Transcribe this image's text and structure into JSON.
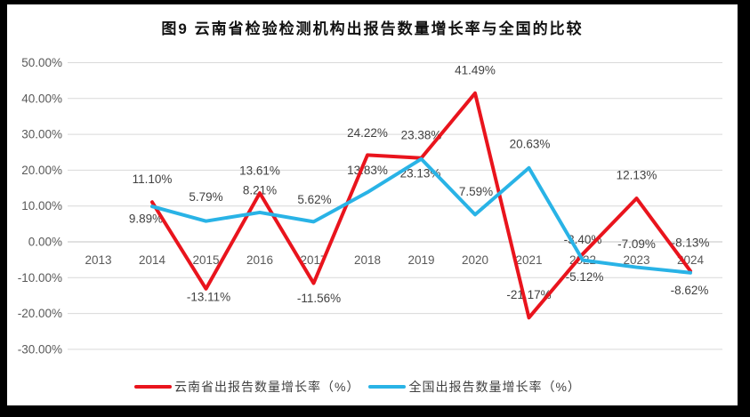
{
  "page": {
    "frame_color": "#000000",
    "canvas_color": "#ffffff"
  },
  "chart_data": {
    "type": "line",
    "title": "图9 云南省检验检测机构出报告数量增长率与全国的比较",
    "x_categories": [
      "2013",
      "2014",
      "2015",
      "2016",
      "2017",
      "2018",
      "2019",
      "2020",
      "2021",
      "2022",
      "2023",
      "2024"
    ],
    "y_axis": {
      "min": -30,
      "max": 50,
      "step": 10,
      "tick_labels": [
        "50.00%",
        "40.00%",
        "30.00%",
        "20.00%",
        "10.00%",
        "0.00%",
        "-10.00%",
        "-20.00%",
        "-30.00%"
      ]
    },
    "grid": "horizontal",
    "legend_position": "bottom",
    "series": [
      {
        "name": "云南省出报告数量增长率（%）",
        "color": "#e9141d",
        "start_category": "2014",
        "values": [
          11.1,
          -13.11,
          13.61,
          -11.56,
          24.22,
          23.38,
          41.49,
          -21.17,
          -3.4,
          12.13,
          -8.13
        ],
        "point_labels": [
          "11.10%",
          "-13.11%",
          "13.61%",
          "-11.56%",
          "24.22%",
          "23.38%",
          "41.49%",
          "-21.17%",
          "-3.40%",
          "12.13%",
          "-8.13%"
        ]
      },
      {
        "name": "全国出报告数量增长率（%）",
        "color": "#29b3e6",
        "start_category": "2014",
        "values": [
          9.89,
          5.79,
          8.21,
          5.62,
          13.83,
          23.13,
          7.59,
          20.63,
          -5.12,
          -7.09,
          -8.62
        ],
        "point_labels": [
          "9.89%",
          "5.79%",
          "8.21%",
          "5.62%",
          "13.83%",
          "23.13%",
          "7.59%",
          "20.63%",
          "-5.12%",
          "-7.09%",
          "-8.62%"
        ]
      }
    ],
    "colors": {
      "gridline": "#d9d9d9",
      "zero_line": "#c3c3c3",
      "axis_text": "#595959",
      "data_label_text": "#404040"
    }
  }
}
